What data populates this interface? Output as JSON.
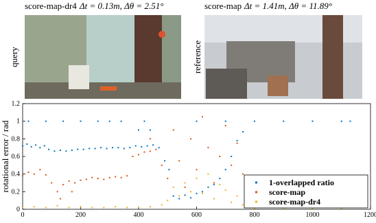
{
  "images": [
    {
      "method": "score-map-dr4",
      "metrics": "Δt = 0.13m, Δθ = 2.51°",
      "side_label": "query"
    },
    {
      "method": "score-map",
      "metrics": "Δt = 1.41m, Δθ = 11.89°",
      "metrics_color": "#e8191e",
      "side_label": "reference"
    }
  ],
  "chart_data": {
    "type": "scatter",
    "ylabel": "rotational error / rad",
    "xlim": [
      0,
      1200
    ],
    "xticks": [
      0,
      200,
      400,
      600,
      800,
      1000,
      1200
    ],
    "ylim": [
      0,
      1.2
    ],
    "yticks": [
      0,
      0.2,
      0.4,
      0.6,
      0.8,
      1,
      1.2
    ],
    "legend": "lower right",
    "series": [
      {
        "name": "1-overlapped ratio",
        "color": "#0072bd",
        "x": [
          0,
          15,
          30,
          45,
          60,
          75,
          90,
          110,
          130,
          150,
          170,
          190,
          210,
          230,
          250,
          270,
          290,
          310,
          330,
          350,
          370,
          390,
          410,
          430,
          450,
          470,
          490,
          505,
          520,
          540,
          560,
          580,
          600,
          620,
          640,
          660,
          680,
          700,
          720,
          740,
          760,
          20,
          80,
          140,
          200,
          260,
          300,
          340,
          420,
          600,
          700,
          800,
          900,
          1000,
          1100,
          1130,
          400,
          440
        ],
        "values": [
          0.72,
          0.74,
          0.71,
          0.73,
          0.7,
          0.72,
          0.68,
          0.66,
          0.67,
          0.66,
          0.67,
          0.68,
          0.68,
          0.69,
          0.69,
          0.7,
          0.69,
          0.7,
          0.7,
          0.69,
          0.7,
          0.72,
          0.71,
          0.72,
          0.73,
          0.7,
          0.55,
          0.45,
          0.15,
          0.12,
          0.16,
          0.13,
          0.18,
          0.2,
          0.25,
          0.28,
          0.35,
          0.45,
          0.6,
          0.78,
          0.88,
          1,
          1,
          1,
          1,
          1,
          1,
          1,
          1,
          1,
          1,
          1,
          1,
          1,
          1,
          1,
          0.9,
          0.9
        ]
      },
      {
        "name": "score-map",
        "color": "#d95319",
        "x": [
          0,
          20,
          40,
          60,
          80,
          100,
          120,
          140,
          160,
          180,
          200,
          220,
          240,
          260,
          280,
          300,
          320,
          340,
          360,
          380,
          400,
          420,
          440,
          460,
          480,
          500,
          520,
          540,
          560,
          580,
          600,
          620,
          640,
          660,
          680,
          700,
          720,
          740,
          760,
          130,
          170,
          440
        ],
        "values": [
          0.38,
          0.42,
          0.4,
          0.45,
          0.39,
          0.3,
          0.2,
          0.28,
          0.32,
          0.3,
          0.33,
          0.34,
          0.36,
          0.35,
          0.34,
          0.36,
          0.37,
          0.36,
          0.38,
          0.6,
          0.62,
          0.65,
          0.66,
          0.68,
          0.5,
          0.35,
          0.9,
          0.55,
          0.25,
          0.8,
          0.45,
          1.05,
          0.7,
          0.3,
          0.6,
          0.95,
          0.5,
          0.75,
          0.4,
          0.12,
          0.2,
          0.8
        ]
      },
      {
        "name": "score-map-dr4",
        "color": "#edb120",
        "x": [
          0,
          40,
          80,
          120,
          160,
          200,
          240,
          280,
          320,
          360,
          400,
          440,
          480,
          500,
          520,
          540,
          560,
          580,
          600,
          620,
          640,
          660,
          680,
          700,
          720,
          740,
          760,
          800,
          900,
          1000,
          1100
        ],
        "values": [
          0.02,
          0.03,
          0.02,
          0.04,
          0.02,
          0.03,
          0.02,
          0.02,
          0.03,
          0.02,
          0.02,
          0.03,
          0.05,
          0.1,
          0.25,
          0.15,
          0.3,
          0.2,
          0.35,
          0.18,
          0.4,
          0.12,
          0.28,
          0.22,
          0.08,
          0.15,
          0.05,
          0.01,
          0.01,
          0.01,
          0.01
        ]
      }
    ]
  }
}
